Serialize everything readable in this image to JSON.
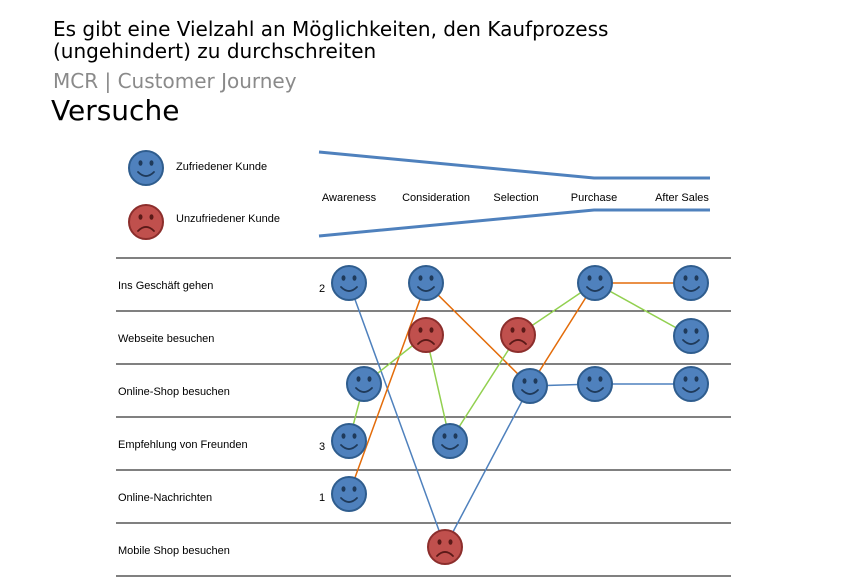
{
  "header": {
    "title_line1": "Es gibt eine Vielzahl an Möglichkeiten, den Kaufprozess",
    "title_line2": "(ungehindert) zu durchschreiten",
    "subtitle": "MCR | Customer Journey",
    "heading": "Versuche"
  },
  "legend": {
    "happy_label": "Zufriedener Kunde",
    "unhappy_label": "Unzufriedener Kunde"
  },
  "stages": [
    "Awareness",
    "Consideration",
    "Selection",
    "Purchase",
    "After Sales"
  ],
  "rows": [
    "Ins Geschäft gehen",
    "Webseite besuchen",
    "Online-Shop besuchen",
    "Empfehlung von Freunden",
    "Online-Nachrichten",
    "Mobile Shop besuchen"
  ],
  "journey_numbers": [
    "2",
    "3",
    "1"
  ],
  "colors": {
    "happy_fill": "#4f81bd",
    "happy_stroke": "#2f5d8e",
    "unhappy_fill": "#c0504d",
    "unhappy_stroke": "#8c2e2c",
    "journey_blue": "#4f81bd",
    "journey_orange": "#e36c0a",
    "journey_green": "#92d050",
    "funnel": "#4f81bd",
    "row_line": "#000000"
  }
}
